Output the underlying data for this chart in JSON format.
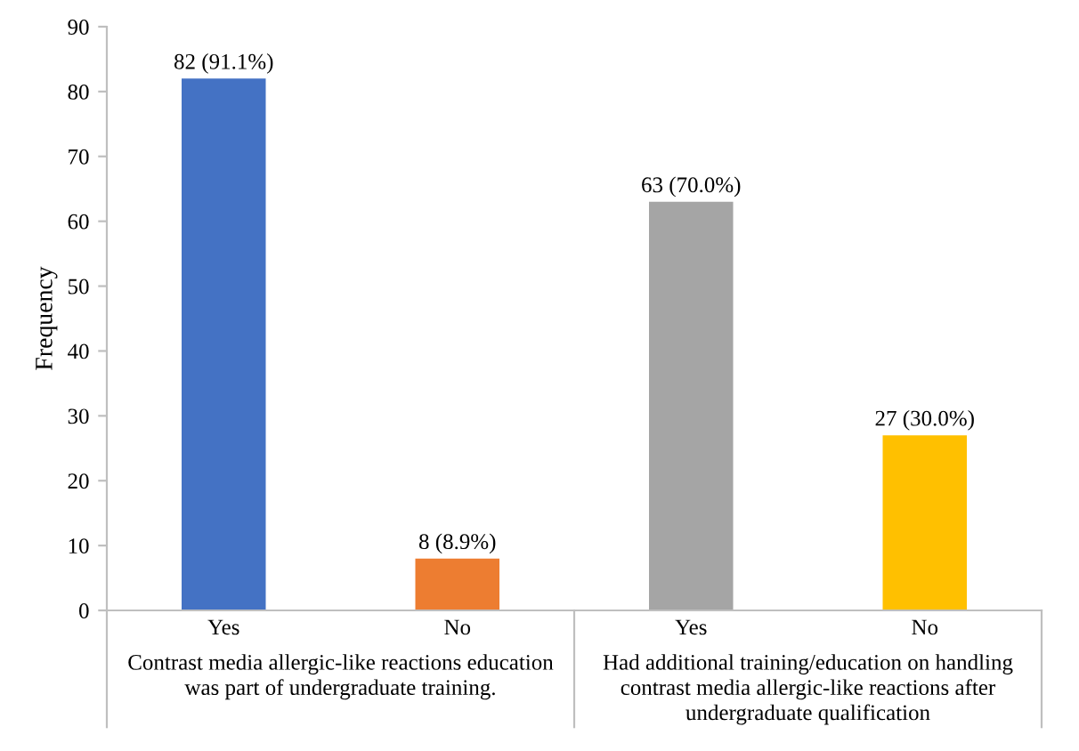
{
  "chart_data": {
    "type": "bar",
    "ylabel": "Frequency",
    "categories": [
      "Yes",
      "No",
      "Yes",
      "No"
    ],
    "values": [
      82,
      8,
      63,
      27
    ],
    "colors": [
      "#4472c4",
      "#ed7d31",
      "#a5a5a5",
      "#ffc000"
    ],
    "value_labels": [
      "82 (91.1%)",
      "8 (8.9%)",
      "63 (70.0%)",
      "27 (30.0%)"
    ],
    "ylim": [
      0,
      90
    ],
    "yticks": [
      0,
      10,
      20,
      30,
      40,
      50,
      60,
      70,
      80,
      90
    ],
    "grid": false,
    "legend": false,
    "annotations": [
      "Contrast media allergic-like reactions education was part of undergraduate training.",
      "Had additional training/education on handling contrast media allergic-like reactions after undergraduate qualification"
    ]
  }
}
